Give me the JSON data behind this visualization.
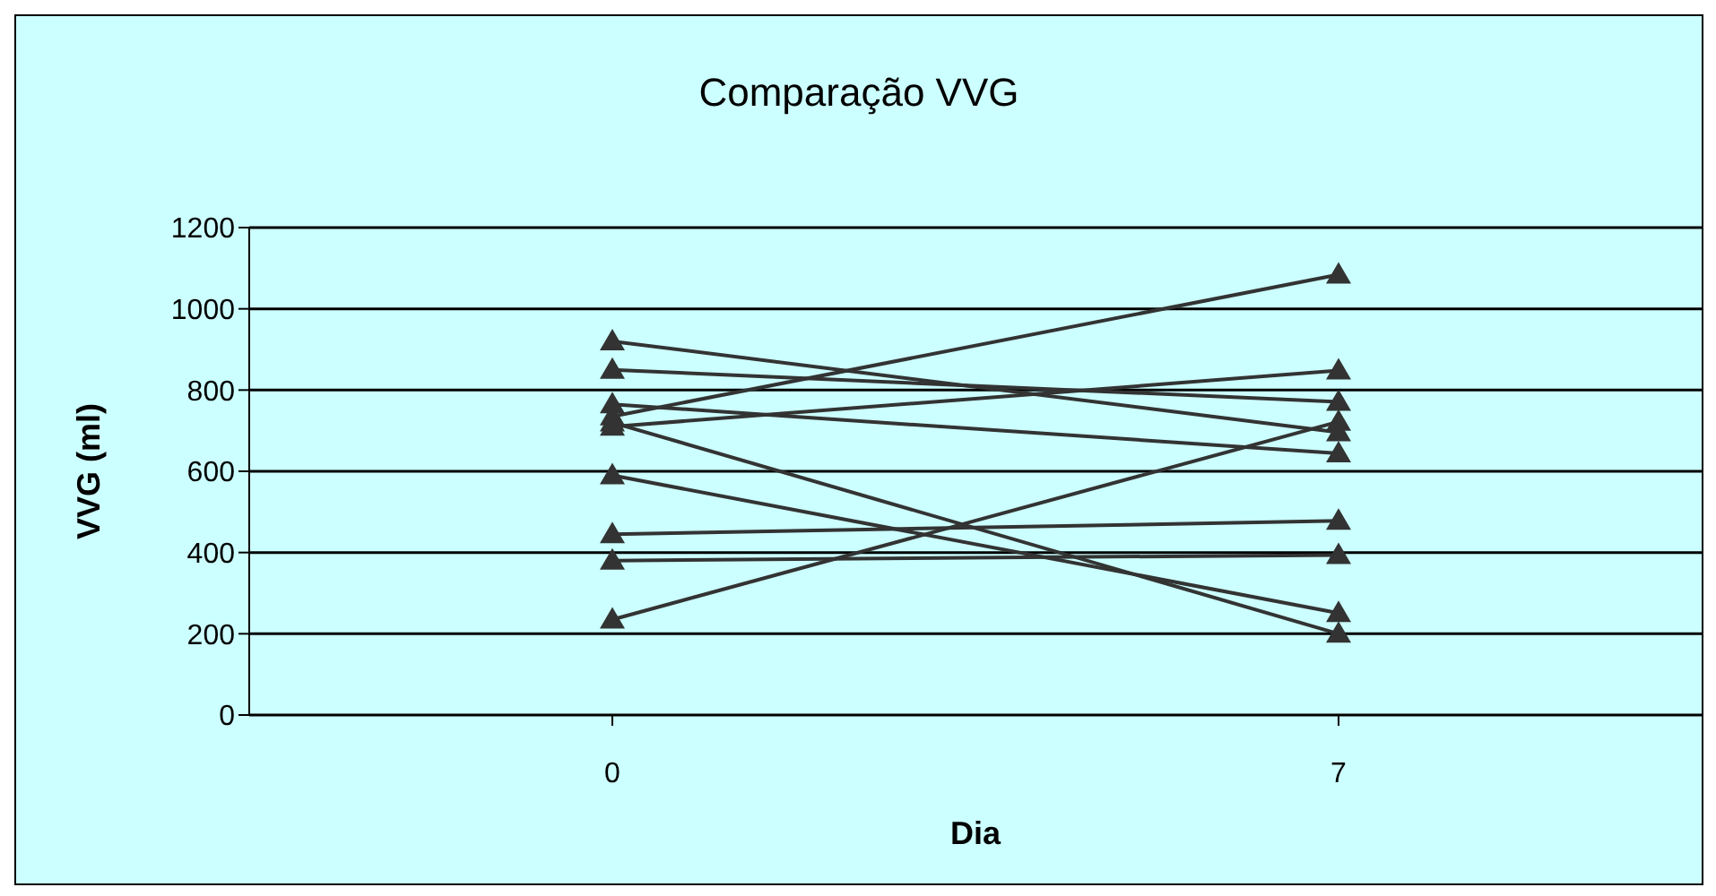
{
  "chart_data": {
    "type": "line",
    "title": "Comparação VVG",
    "xlabel": "Dia",
    "ylabel": "VVG (ml)",
    "categories": [
      "0",
      "7"
    ],
    "series": [
      {
        "color": "#333333",
        "values": [
          920,
          696
        ]
      },
      {
        "color": "#333333",
        "values": [
          850,
          771
        ]
      },
      {
        "color": "#333333",
        "values": [
          765,
          644
        ]
      },
      {
        "color": "#333333",
        "values": [
          735,
          1084
        ]
      },
      {
        "color": "#333333",
        "values": [
          710,
          848
        ]
      },
      {
        "color": "#333333",
        "values": [
          720,
          200
        ]
      },
      {
        "color": "#333333",
        "values": [
          590,
          251
        ]
      },
      {
        "color": "#333333",
        "values": [
          445,
          478
        ]
      },
      {
        "color": "#333333",
        "values": [
          380,
          394
        ]
      },
      {
        "color": "#333333",
        "values": [
          235,
          722
        ]
      }
    ],
    "ylim": [
      0,
      1200
    ],
    "yticks": [
      0,
      200,
      400,
      600,
      800,
      1000,
      1200
    ],
    "grid": "y",
    "marker": "triangle"
  }
}
